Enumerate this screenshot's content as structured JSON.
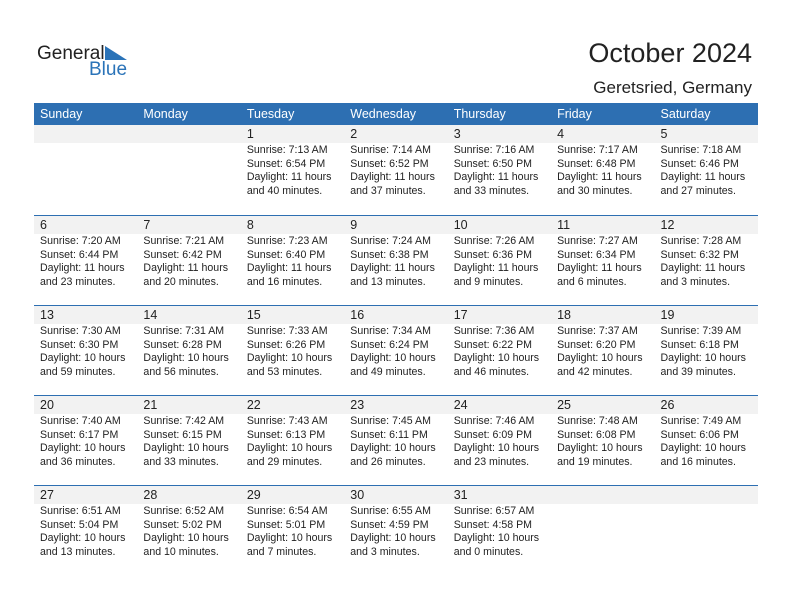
{
  "logo": {
    "line1": "General",
    "line2": "Blue"
  },
  "title": "October 2024",
  "location": "Geretsried, Germany",
  "days": [
    "Sunday",
    "Monday",
    "Tuesday",
    "Wednesday",
    "Thursday",
    "Friday",
    "Saturday"
  ],
  "weeks": [
    [
      null,
      null,
      {
        "d": "1",
        "sr": "Sunrise: 7:13 AM",
        "ss": "Sunset: 6:54 PM",
        "dl1": "Daylight: 11 hours",
        "dl2": "and 40 minutes."
      },
      {
        "d": "2",
        "sr": "Sunrise: 7:14 AM",
        "ss": "Sunset: 6:52 PM",
        "dl1": "Daylight: 11 hours",
        "dl2": "and 37 minutes."
      },
      {
        "d": "3",
        "sr": "Sunrise: 7:16 AM",
        "ss": "Sunset: 6:50 PM",
        "dl1": "Daylight: 11 hours",
        "dl2": "and 33 minutes."
      },
      {
        "d": "4",
        "sr": "Sunrise: 7:17 AM",
        "ss": "Sunset: 6:48 PM",
        "dl1": "Daylight: 11 hours",
        "dl2": "and 30 minutes."
      },
      {
        "d": "5",
        "sr": "Sunrise: 7:18 AM",
        "ss": "Sunset: 6:46 PM",
        "dl1": "Daylight: 11 hours",
        "dl2": "and 27 minutes."
      }
    ],
    [
      {
        "d": "6",
        "sr": "Sunrise: 7:20 AM",
        "ss": "Sunset: 6:44 PM",
        "dl1": "Daylight: 11 hours",
        "dl2": "and 23 minutes."
      },
      {
        "d": "7",
        "sr": "Sunrise: 7:21 AM",
        "ss": "Sunset: 6:42 PM",
        "dl1": "Daylight: 11 hours",
        "dl2": "and 20 minutes."
      },
      {
        "d": "8",
        "sr": "Sunrise: 7:23 AM",
        "ss": "Sunset: 6:40 PM",
        "dl1": "Daylight: 11 hours",
        "dl2": "and 16 minutes."
      },
      {
        "d": "9",
        "sr": "Sunrise: 7:24 AM",
        "ss": "Sunset: 6:38 PM",
        "dl1": "Daylight: 11 hours",
        "dl2": "and 13 minutes."
      },
      {
        "d": "10",
        "sr": "Sunrise: 7:26 AM",
        "ss": "Sunset: 6:36 PM",
        "dl1": "Daylight: 11 hours",
        "dl2": "and 9 minutes."
      },
      {
        "d": "11",
        "sr": "Sunrise: 7:27 AM",
        "ss": "Sunset: 6:34 PM",
        "dl1": "Daylight: 11 hours",
        "dl2": "and 6 minutes."
      },
      {
        "d": "12",
        "sr": "Sunrise: 7:28 AM",
        "ss": "Sunset: 6:32 PM",
        "dl1": "Daylight: 11 hours",
        "dl2": "and 3 minutes."
      }
    ],
    [
      {
        "d": "13",
        "sr": "Sunrise: 7:30 AM",
        "ss": "Sunset: 6:30 PM",
        "dl1": "Daylight: 10 hours",
        "dl2": "and 59 minutes."
      },
      {
        "d": "14",
        "sr": "Sunrise: 7:31 AM",
        "ss": "Sunset: 6:28 PM",
        "dl1": "Daylight: 10 hours",
        "dl2": "and 56 minutes."
      },
      {
        "d": "15",
        "sr": "Sunrise: 7:33 AM",
        "ss": "Sunset: 6:26 PM",
        "dl1": "Daylight: 10 hours",
        "dl2": "and 53 minutes."
      },
      {
        "d": "16",
        "sr": "Sunrise: 7:34 AM",
        "ss": "Sunset: 6:24 PM",
        "dl1": "Daylight: 10 hours",
        "dl2": "and 49 minutes."
      },
      {
        "d": "17",
        "sr": "Sunrise: 7:36 AM",
        "ss": "Sunset: 6:22 PM",
        "dl1": "Daylight: 10 hours",
        "dl2": "and 46 minutes."
      },
      {
        "d": "18",
        "sr": "Sunrise: 7:37 AM",
        "ss": "Sunset: 6:20 PM",
        "dl1": "Daylight: 10 hours",
        "dl2": "and 42 minutes."
      },
      {
        "d": "19",
        "sr": "Sunrise: 7:39 AM",
        "ss": "Sunset: 6:18 PM",
        "dl1": "Daylight: 10 hours",
        "dl2": "and 39 minutes."
      }
    ],
    [
      {
        "d": "20",
        "sr": "Sunrise: 7:40 AM",
        "ss": "Sunset: 6:17 PM",
        "dl1": "Daylight: 10 hours",
        "dl2": "and 36 minutes."
      },
      {
        "d": "21",
        "sr": "Sunrise: 7:42 AM",
        "ss": "Sunset: 6:15 PM",
        "dl1": "Daylight: 10 hours",
        "dl2": "and 33 minutes."
      },
      {
        "d": "22",
        "sr": "Sunrise: 7:43 AM",
        "ss": "Sunset: 6:13 PM",
        "dl1": "Daylight: 10 hours",
        "dl2": "and 29 minutes."
      },
      {
        "d": "23",
        "sr": "Sunrise: 7:45 AM",
        "ss": "Sunset: 6:11 PM",
        "dl1": "Daylight: 10 hours",
        "dl2": "and 26 minutes."
      },
      {
        "d": "24",
        "sr": "Sunrise: 7:46 AM",
        "ss": "Sunset: 6:09 PM",
        "dl1": "Daylight: 10 hours",
        "dl2": "and 23 minutes."
      },
      {
        "d": "25",
        "sr": "Sunrise: 7:48 AM",
        "ss": "Sunset: 6:08 PM",
        "dl1": "Daylight: 10 hours",
        "dl2": "and 19 minutes."
      },
      {
        "d": "26",
        "sr": "Sunrise: 7:49 AM",
        "ss": "Sunset: 6:06 PM",
        "dl1": "Daylight: 10 hours",
        "dl2": "and 16 minutes."
      }
    ],
    [
      {
        "d": "27",
        "sr": "Sunrise: 6:51 AM",
        "ss": "Sunset: 5:04 PM",
        "dl1": "Daylight: 10 hours",
        "dl2": "and 13 minutes."
      },
      {
        "d": "28",
        "sr": "Sunrise: 6:52 AM",
        "ss": "Sunset: 5:02 PM",
        "dl1": "Daylight: 10 hours",
        "dl2": "and 10 minutes."
      },
      {
        "d": "29",
        "sr": "Sunrise: 6:54 AM",
        "ss": "Sunset: 5:01 PM",
        "dl1": "Daylight: 10 hours",
        "dl2": "and 7 minutes."
      },
      {
        "d": "30",
        "sr": "Sunrise: 6:55 AM",
        "ss": "Sunset: 4:59 PM",
        "dl1": "Daylight: 10 hours",
        "dl2": "and 3 minutes."
      },
      {
        "d": "31",
        "sr": "Sunrise: 6:57 AM",
        "ss": "Sunset: 4:58 PM",
        "dl1": "Daylight: 10 hours",
        "dl2": "and 0 minutes."
      },
      null,
      null
    ]
  ],
  "colors": {
    "accent": "#2d6fb2",
    "band": "#f2f2f2"
  }
}
